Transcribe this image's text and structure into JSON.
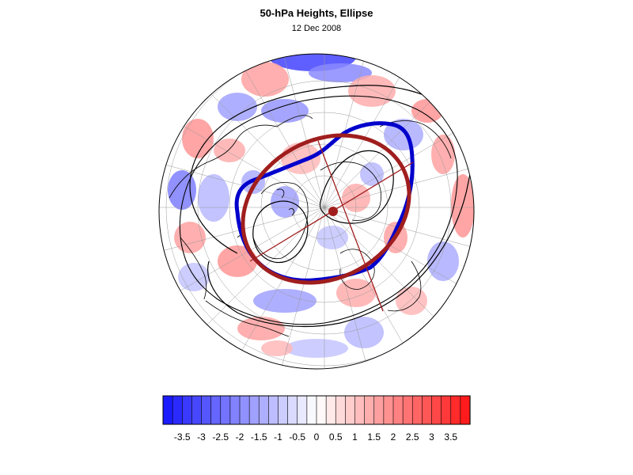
{
  "title": "50-hPa Heights, Ellipse",
  "subtitle": "12 Dec 2008",
  "colors": {
    "ellipse": "#a01e1e",
    "polar_vortex": "#0000cc",
    "coastline": "#000000",
    "contour": "#000000",
    "grid": "#9a9a9a"
  },
  "colorbar": {
    "labels": [
      "-3.5",
      "-3",
      "-2.5",
      "-2",
      "-1.5",
      "-1",
      "-0.5",
      "0",
      "0.5",
      "1",
      "1.5",
      "2",
      "2.5",
      "3",
      "3.5"
    ],
    "min": -4,
    "max": 4,
    "step": 0.25,
    "low_color": "#1414ff",
    "mid_color": "#ffffff",
    "high_color": "#ff1414"
  }
}
